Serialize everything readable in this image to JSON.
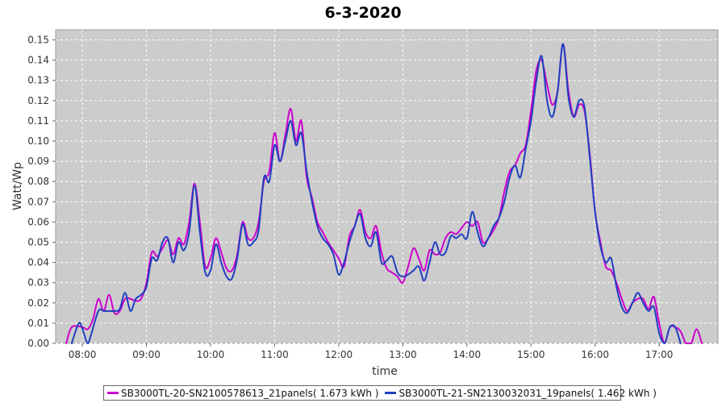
{
  "chart_data": {
    "type": "line",
    "title": "6-3-2020",
    "xlabel": "time",
    "ylabel": "Watt/Wp",
    "xlim": [
      "07:35",
      "17:55"
    ],
    "ylim": [
      0,
      0.155
    ],
    "x_ticks": [
      "08:00",
      "09:00",
      "10:00",
      "11:00",
      "12:00",
      "13:00",
      "14:00",
      "15:00",
      "16:00",
      "17:00"
    ],
    "y_ticks": [
      "0.00",
      "0.01",
      "0.02",
      "0.03",
      "0.04",
      "0.05",
      "0.06",
      "0.07",
      "0.08",
      "0.09",
      "0.10",
      "0.11",
      "0.12",
      "0.13",
      "0.14",
      "0.15"
    ],
    "grid": true,
    "legend_position": "bottom",
    "series": [
      {
        "name": "SB3000TL-20-SN2100578613_21panels( 1.673 kWh )",
        "color": "#cc00cc",
        "points": [
          [
            "07:45",
            0.0
          ],
          [
            "07:50",
            0.008
          ],
          [
            "08:00",
            0.008
          ],
          [
            "08:05",
            0.007
          ],
          [
            "08:10",
            0.012
          ],
          [
            "08:15",
            0.022
          ],
          [
            "08:20",
            0.016
          ],
          [
            "08:25",
            0.024
          ],
          [
            "08:30",
            0.015
          ],
          [
            "08:35",
            0.016
          ],
          [
            "08:40",
            0.022
          ],
          [
            "08:45",
            0.022
          ],
          [
            "08:50",
            0.021
          ],
          [
            "08:55",
            0.022
          ],
          [
            "09:00",
            0.03
          ],
          [
            "09:05",
            0.045
          ],
          [
            "09:10",
            0.043
          ],
          [
            "09:15",
            0.047
          ],
          [
            "09:20",
            0.051
          ],
          [
            "09:25",
            0.044
          ],
          [
            "09:30",
            0.052
          ],
          [
            "09:35",
            0.049
          ],
          [
            "09:40",
            0.06
          ],
          [
            "09:45",
            0.079
          ],
          [
            "09:50",
            0.06
          ],
          [
            "09:55",
            0.038
          ],
          [
            "10:00",
            0.042
          ],
          [
            "10:05",
            0.052
          ],
          [
            "10:10",
            0.045
          ],
          [
            "10:15",
            0.037
          ],
          [
            "10:20",
            0.036
          ],
          [
            "10:25",
            0.044
          ],
          [
            "10:30",
            0.06
          ],
          [
            "10:35",
            0.052
          ],
          [
            "10:40",
            0.052
          ],
          [
            "10:45",
            0.06
          ],
          [
            "10:50",
            0.08
          ],
          [
            "10:55",
            0.085
          ],
          [
            "11:00",
            0.104
          ],
          [
            "11:05",
            0.09
          ],
          [
            "11:10",
            0.103
          ],
          [
            "11:15",
            0.116
          ],
          [
            "11:20",
            0.1
          ],
          [
            "11:25",
            0.11
          ],
          [
            "11:30",
            0.082
          ],
          [
            "11:35",
            0.072
          ],
          [
            "11:40",
            0.06
          ],
          [
            "11:45",
            0.055
          ],
          [
            "11:50",
            0.05
          ],
          [
            "11:55",
            0.046
          ],
          [
            "12:00",
            0.042
          ],
          [
            "12:05",
            0.038
          ],
          [
            "12:10",
            0.053
          ],
          [
            "12:15",
            0.058
          ],
          [
            "12:20",
            0.066
          ],
          [
            "12:25",
            0.055
          ],
          [
            "12:30",
            0.052
          ],
          [
            "12:35",
            0.058
          ],
          [
            "12:40",
            0.045
          ],
          [
            "12:45",
            0.037
          ],
          [
            "12:50",
            0.035
          ],
          [
            "12:55",
            0.033
          ],
          [
            "13:00",
            0.03
          ],
          [
            "13:05",
            0.038
          ],
          [
            "13:10",
            0.047
          ],
          [
            "13:15",
            0.042
          ],
          [
            "13:20",
            0.036
          ],
          [
            "13:25",
            0.046
          ],
          [
            "13:30",
            0.044
          ],
          [
            "13:35",
            0.045
          ],
          [
            "13:40",
            0.052
          ],
          [
            "13:45",
            0.055
          ],
          [
            "13:50",
            0.054
          ],
          [
            "13:55",
            0.057
          ],
          [
            "14:00",
            0.06
          ],
          [
            "14:05",
            0.058
          ],
          [
            "14:10",
            0.06
          ],
          [
            "14:15",
            0.05
          ],
          [
            "14:20",
            0.052
          ],
          [
            "14:25",
            0.056
          ],
          [
            "14:30",
            0.062
          ],
          [
            "14:35",
            0.075
          ],
          [
            "14:40",
            0.085
          ],
          [
            "14:45",
            0.088
          ],
          [
            "14:50",
            0.094
          ],
          [
            "14:55",
            0.098
          ],
          [
            "15:00",
            0.115
          ],
          [
            "15:05",
            0.135
          ],
          [
            "15:10",
            0.14
          ],
          [
            "15:15",
            0.128
          ],
          [
            "15:20",
            0.118
          ],
          [
            "15:25",
            0.125
          ],
          [
            "15:30",
            0.148
          ],
          [
            "15:35",
            0.125
          ],
          [
            "15:40",
            0.112
          ],
          [
            "15:45",
            0.118
          ],
          [
            "15:50",
            0.115
          ],
          [
            "15:55",
            0.094
          ],
          [
            "16:00",
            0.065
          ],
          [
            "16:05",
            0.05
          ],
          [
            "16:10",
            0.038
          ],
          [
            "16:15",
            0.036
          ],
          [
            "16:20",
            0.03
          ],
          [
            "16:25",
            0.022
          ],
          [
            "16:30",
            0.016
          ],
          [
            "16:35",
            0.02
          ],
          [
            "16:40",
            0.022
          ],
          [
            "16:45",
            0.022
          ],
          [
            "16:50",
            0.017
          ],
          [
            "16:55",
            0.023
          ],
          [
            "17:00",
            0.01
          ],
          [
            "17:05",
            0.0
          ],
          [
            "17:10",
            0.008
          ],
          [
            "17:15",
            0.008
          ],
          [
            "17:20",
            0.006
          ],
          [
            "17:25",
            0.0
          ],
          [
            "17:30",
            0.0
          ],
          [
            "17:35",
            0.007
          ],
          [
            "17:40",
            0.0
          ]
        ]
      },
      {
        "name": "SB3000TL-21-SN2130032031_19panels( 1.462 kWh )",
        "color": "#1f3fbf",
        "points": [
          [
            "07:50",
            0.0
          ],
          [
            "07:55",
            0.008
          ],
          [
            "07:58",
            0.01
          ],
          [
            "08:02",
            0.004
          ],
          [
            "08:05",
            0.0
          ],
          [
            "08:08",
            0.004
          ],
          [
            "08:15",
            0.016
          ],
          [
            "08:20",
            0.016
          ],
          [
            "08:25",
            0.016
          ],
          [
            "08:30",
            0.016
          ],
          [
            "08:35",
            0.017
          ],
          [
            "08:40",
            0.025
          ],
          [
            "08:45",
            0.016
          ],
          [
            "08:50",
            0.022
          ],
          [
            "08:55",
            0.024
          ],
          [
            "09:00",
            0.028
          ],
          [
            "09:05",
            0.042
          ],
          [
            "09:10",
            0.041
          ],
          [
            "09:15",
            0.05
          ],
          [
            "09:20",
            0.052
          ],
          [
            "09:25",
            0.04
          ],
          [
            "09:30",
            0.05
          ],
          [
            "09:35",
            0.046
          ],
          [
            "09:40",
            0.055
          ],
          [
            "09:45",
            0.078
          ],
          [
            "09:50",
            0.055
          ],
          [
            "09:55",
            0.035
          ],
          [
            "10:00",
            0.036
          ],
          [
            "10:05",
            0.049
          ],
          [
            "10:10",
            0.04
          ],
          [
            "10:15",
            0.033
          ],
          [
            "10:20",
            0.032
          ],
          [
            "10:25",
            0.042
          ],
          [
            "10:30",
            0.059
          ],
          [
            "10:35",
            0.049
          ],
          [
            "10:40",
            0.05
          ],
          [
            "10:45",
            0.056
          ],
          [
            "10:50",
            0.082
          ],
          [
            "10:55",
            0.08
          ],
          [
            "11:00",
            0.098
          ],
          [
            "11:05",
            0.09
          ],
          [
            "11:10",
            0.1
          ],
          [
            "11:15",
            0.11
          ],
          [
            "11:20",
            0.098
          ],
          [
            "11:25",
            0.104
          ],
          [
            "11:30",
            0.085
          ],
          [
            "11:35",
            0.07
          ],
          [
            "11:40",
            0.058
          ],
          [
            "11:45",
            0.052
          ],
          [
            "11:50",
            0.049
          ],
          [
            "11:55",
            0.044
          ],
          [
            "12:00",
            0.034
          ],
          [
            "12:05",
            0.04
          ],
          [
            "12:10",
            0.05
          ],
          [
            "12:15",
            0.058
          ],
          [
            "12:20",
            0.064
          ],
          [
            "12:25",
            0.052
          ],
          [
            "12:30",
            0.048
          ],
          [
            "12:35",
            0.055
          ],
          [
            "12:40",
            0.04
          ],
          [
            "12:45",
            0.041
          ],
          [
            "12:50",
            0.043
          ],
          [
            "12:55",
            0.035
          ],
          [
            "13:00",
            0.033
          ],
          [
            "13:05",
            0.034
          ],
          [
            "13:10",
            0.036
          ],
          [
            "13:15",
            0.038
          ],
          [
            "13:20",
            0.031
          ],
          [
            "13:25",
            0.04
          ],
          [
            "13:30",
            0.05
          ],
          [
            "13:35",
            0.044
          ],
          [
            "13:40",
            0.045
          ],
          [
            "13:45",
            0.053
          ],
          [
            "13:50",
            0.052
          ],
          [
            "13:55",
            0.054
          ],
          [
            "14:00",
            0.052
          ],
          [
            "14:05",
            0.065
          ],
          [
            "14:10",
            0.055
          ],
          [
            "14:15",
            0.048
          ],
          [
            "14:20",
            0.052
          ],
          [
            "14:25",
            0.058
          ],
          [
            "14:30",
            0.062
          ],
          [
            "14:35",
            0.07
          ],
          [
            "14:40",
            0.082
          ],
          [
            "14:45",
            0.088
          ],
          [
            "14:50",
            0.082
          ],
          [
            "14:55",
            0.096
          ],
          [
            "15:00",
            0.11
          ],
          [
            "15:05",
            0.13
          ],
          [
            "15:10",
            0.142
          ],
          [
            "15:15",
            0.12
          ],
          [
            "15:20",
            0.112
          ],
          [
            "15:25",
            0.125
          ],
          [
            "15:30",
            0.148
          ],
          [
            "15:35",
            0.122
          ],
          [
            "15:40",
            0.112
          ],
          [
            "15:45",
            0.12
          ],
          [
            "15:50",
            0.117
          ],
          [
            "15:55",
            0.092
          ],
          [
            "16:00",
            0.065
          ],
          [
            "16:05",
            0.048
          ],
          [
            "16:10",
            0.04
          ],
          [
            "16:15",
            0.042
          ],
          [
            "16:20",
            0.028
          ],
          [
            "16:25",
            0.018
          ],
          [
            "16:30",
            0.015
          ],
          [
            "16:35",
            0.02
          ],
          [
            "16:40",
            0.025
          ],
          [
            "16:45",
            0.02
          ],
          [
            "16:50",
            0.016
          ],
          [
            "16:55",
            0.018
          ],
          [
            "17:00",
            0.005
          ],
          [
            "17:05",
            0.0
          ],
          [
            "17:10",
            0.008
          ],
          [
            "17:15",
            0.008
          ],
          [
            "17:20",
            0.0
          ]
        ]
      }
    ]
  }
}
